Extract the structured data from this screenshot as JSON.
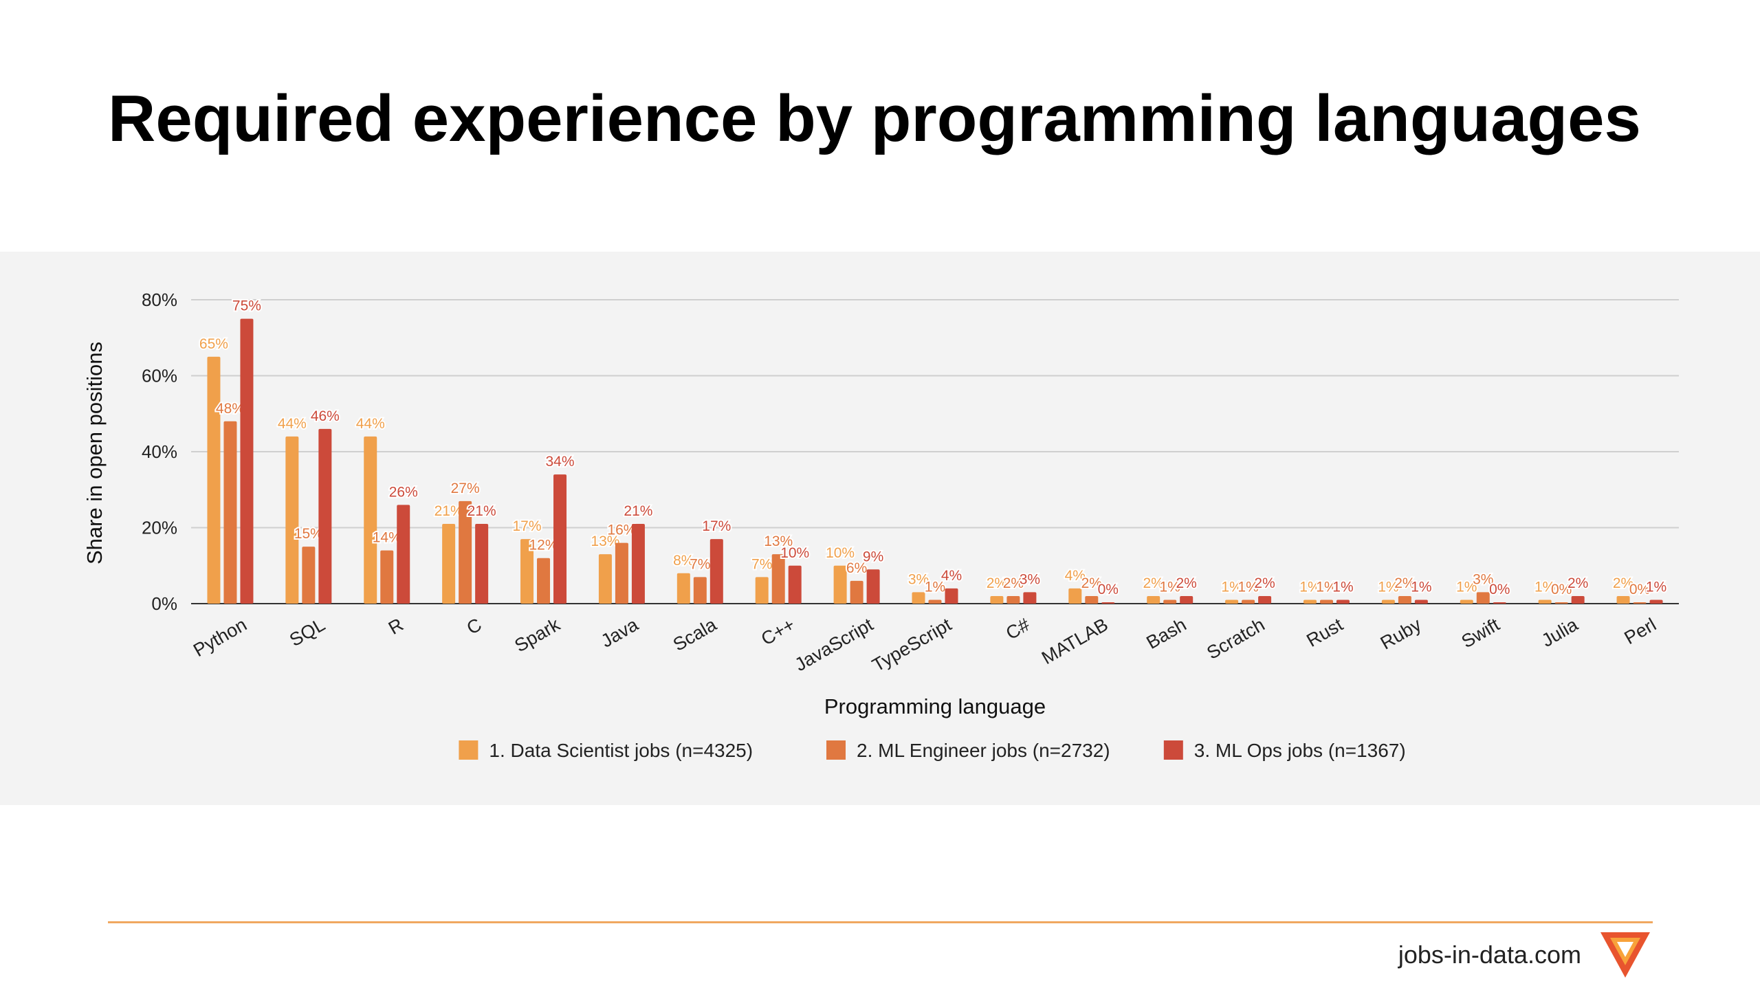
{
  "page": {
    "title": "Required experience by programming languages",
    "site": "jobs-in-data.com"
  },
  "colors": {
    "panel_bg": "#f3f3f3",
    "series": [
      "#f0a04b",
      "#e07840",
      "#cc4a3a"
    ],
    "accent_line": "#f0a860",
    "logo_outer": "#e8542e",
    "logo_inner": "#f8a23a"
  },
  "chart_data": {
    "type": "bar",
    "title": "",
    "xlabel": "Programming language",
    "ylabel": "Share in open positions",
    "ylim": [
      0,
      80
    ],
    "yticks": [
      "0%",
      "20%",
      "40%",
      "60%",
      "80%"
    ],
    "grid": true,
    "legend_position": "bottom",
    "categories": [
      "Python",
      "SQL",
      "R",
      "C",
      "Spark",
      "Java",
      "Scala",
      "C++",
      "JavaScript",
      "TypeScript",
      "C#",
      "MATLAB",
      "Bash",
      "Scratch",
      "Rust",
      "Ruby",
      "Swift",
      "Julia",
      "Perl"
    ],
    "series": [
      {
        "name": "1. Data Scientist jobs (n=4325)",
        "values": [
          65,
          44,
          44,
          21,
          17,
          13,
          8,
          7,
          10,
          3,
          2,
          4,
          2,
          1,
          1,
          1,
          1,
          1,
          2
        ],
        "labels": [
          "65%",
          "44%",
          "44%",
          "21%",
          "17%",
          "13%",
          "8%",
          "7%",
          "10%",
          "3%",
          "2%",
          "4%",
          "2%",
          "1%",
          "1%",
          "1%",
          "1%",
          "1%",
          "2%"
        ]
      },
      {
        "name": "2. ML Engineer jobs (n=2732)",
        "values": [
          48,
          15,
          14,
          27,
          12,
          16,
          7,
          13,
          6,
          1,
          2,
          2,
          1,
          1,
          1,
          2,
          3,
          0,
          0
        ],
        "labels": [
          "48%",
          "15%",
          "14%",
          "27%",
          "12%",
          "16%",
          "7%",
          "13%",
          "6%",
          "1%",
          "2%",
          "2%",
          "1%",
          "1%",
          "1%",
          "2%",
          "3%",
          "0%",
          "0%"
        ]
      },
      {
        "name": "3. ML Ops jobs (n=1367)",
        "values": [
          75,
          46,
          26,
          21,
          34,
          21,
          17,
          10,
          9,
          4,
          3,
          0,
          2,
          2,
          1,
          1,
          0,
          2,
          1
        ],
        "labels": [
          "75%",
          "46%",
          "26%",
          "21%",
          "34%",
          "21%",
          "17%",
          "10%",
          "9%",
          "4%",
          "3%",
          "0%",
          "2%",
          "2%",
          "1%",
          "1%",
          "0%",
          "2%",
          "1%"
        ]
      }
    ]
  }
}
